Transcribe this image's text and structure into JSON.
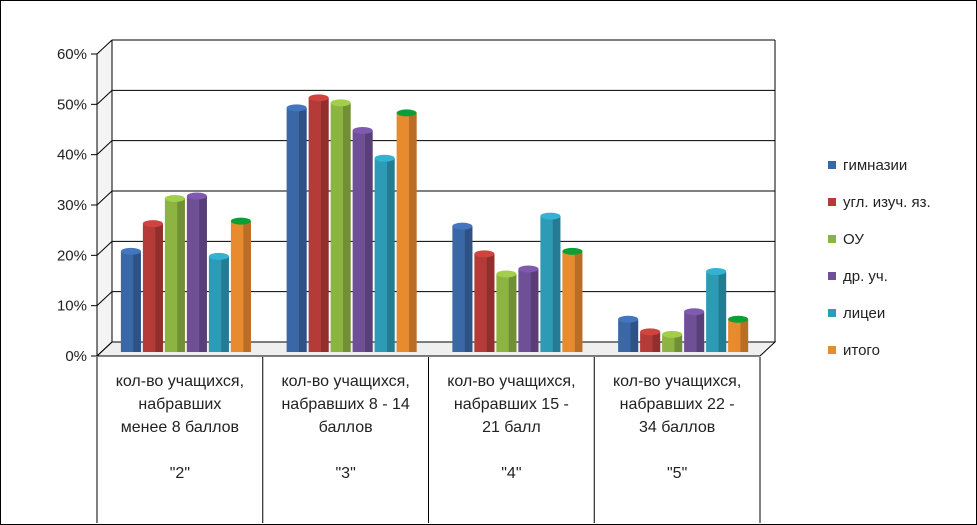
{
  "chart_data": {
    "type": "bar",
    "categories": [
      [
        "кол-во учащихся,",
        "набравших",
        "менее 8 баллов",
        "",
        "\"2\""
      ],
      [
        "кол-во учащихся,",
        "набравших 8 - 14",
        "баллов",
        "",
        "\"3\""
      ],
      [
        "кол-во учащихся,",
        "набравших 15 -",
        "21  балл",
        "",
        "\"4\""
      ],
      [
        "кол-во учащихся,",
        "набравших 22 -",
        "34  баллов",
        "",
        "\"5\""
      ]
    ],
    "series": [
      {
        "name": "гимназии",
        "color": "#3a67a6",
        "values": [
          20,
          48.5,
          25,
          6.5
        ]
      },
      {
        "name": "угл. изуч. яз.",
        "color": "#b43b37",
        "values": [
          25.5,
          50.5,
          19.5,
          4
        ]
      },
      {
        "name": "ОУ",
        "color": "#8db342",
        "values": [
          30.5,
          49.5,
          15.5,
          3.5
        ]
      },
      {
        "name": "др. уч.",
        "color": "#6f4f96",
        "values": [
          31,
          44,
          16.5,
          8
        ]
      },
      {
        "name": "лицеи",
        "color": "#2e9bb6",
        "values": [
          19,
          38.5,
          27,
          16
        ]
      },
      {
        "name": "итого",
        "color": "#e88a2e",
        "values": [
          26,
          47.5,
          20,
          6.5
        ]
      }
    ],
    "ylim": [
      0,
      60
    ],
    "yticks": [
      "0%",
      "10%",
      "20%",
      "30%",
      "40%",
      "50%",
      "60%"
    ],
    "grid": true,
    "legend": "right"
  }
}
